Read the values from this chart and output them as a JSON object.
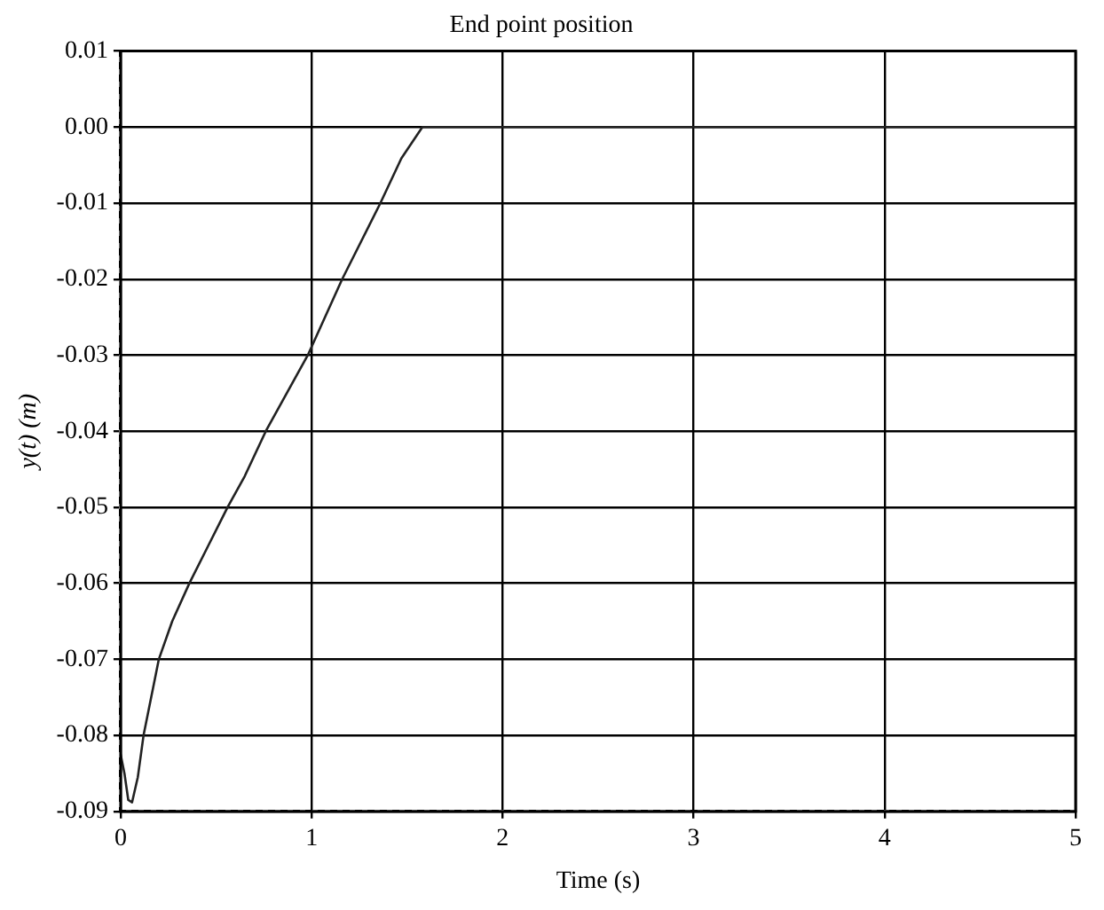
{
  "chart_data": {
    "type": "line",
    "title": "End point position",
    "xlabel": "Time (s)",
    "ylabel": "y(t) (m)",
    "x": [
      0,
      0.02,
      0.04,
      0.06,
      0.09,
      0.12,
      0.2,
      0.27,
      0.36,
      0.46,
      0.56,
      0.65,
      0.76,
      0.98,
      1.16,
      1.36,
      1.47,
      1.58,
      2,
      3,
      4,
      5
    ],
    "series": [
      {
        "color": "#222222",
        "values": [
          -0.0825,
          -0.085,
          -0.0885,
          -0.0888,
          -0.0855,
          -0.08,
          -0.07,
          -0.065,
          -0.06,
          -0.055,
          -0.05,
          -0.0459,
          -0.04,
          -0.03,
          -0.02,
          -0.01,
          -0.0041,
          0,
          0,
          0,
          0,
          0
        ]
      }
    ],
    "xlim": [
      0,
      5
    ],
    "xticks": [
      0,
      1,
      2,
      3,
      4,
      5
    ],
    "ylim": [
      -0.09,
      0.01
    ],
    "yticks": [
      {
        "value": -0.09,
        "label": "-0.09"
      },
      {
        "value": -0.08,
        "label": "-0.08"
      },
      {
        "value": -0.07,
        "label": "-0.07"
      },
      {
        "value": -0.06,
        "label": "-0.06"
      },
      {
        "value": -0.05,
        "label": "-0.05"
      },
      {
        "value": -0.04,
        "label": "-0.04"
      },
      {
        "value": -0.03,
        "label": "-0.03"
      },
      {
        "value": -0.02,
        "label": "-0.02"
      },
      {
        "value": -0.01,
        "label": "-0.01"
      },
      {
        "value": 0,
        "label": "0.00"
      },
      {
        "value": 0.01,
        "label": "0.01"
      }
    ],
    "grid": true,
    "legend": false,
    "marker": "none",
    "line_style": "solid"
  }
}
